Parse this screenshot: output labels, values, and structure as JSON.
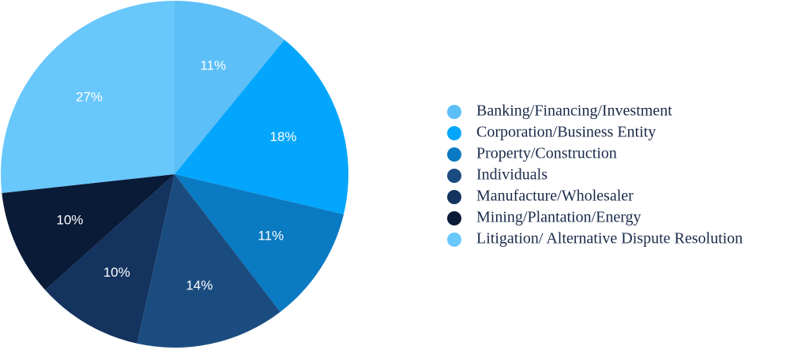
{
  "chart_data": {
    "type": "pie",
    "categories": [
      "Banking/Financing/Investment",
      "Corporation/Business Entity",
      "Property/Construction",
      "Individuals",
      "Manufacture/Wholesaler",
      "Mining/Plantation/Energy",
      "Litigation/ Alternative Dispute Resolution"
    ],
    "values": [
      11,
      18,
      11,
      14,
      10,
      10,
      27
    ],
    "value_labels": [
      "11%",
      "18%",
      "11%",
      "14%",
      "10%",
      "10%",
      "27%"
    ],
    "colors": [
      "#5cbff7",
      "#03a6fc",
      "#0a7ac2",
      "#1b4c80",
      "#14335f",
      "#0a1b38",
      "#68c7fb"
    ],
    "legend": "right"
  }
}
